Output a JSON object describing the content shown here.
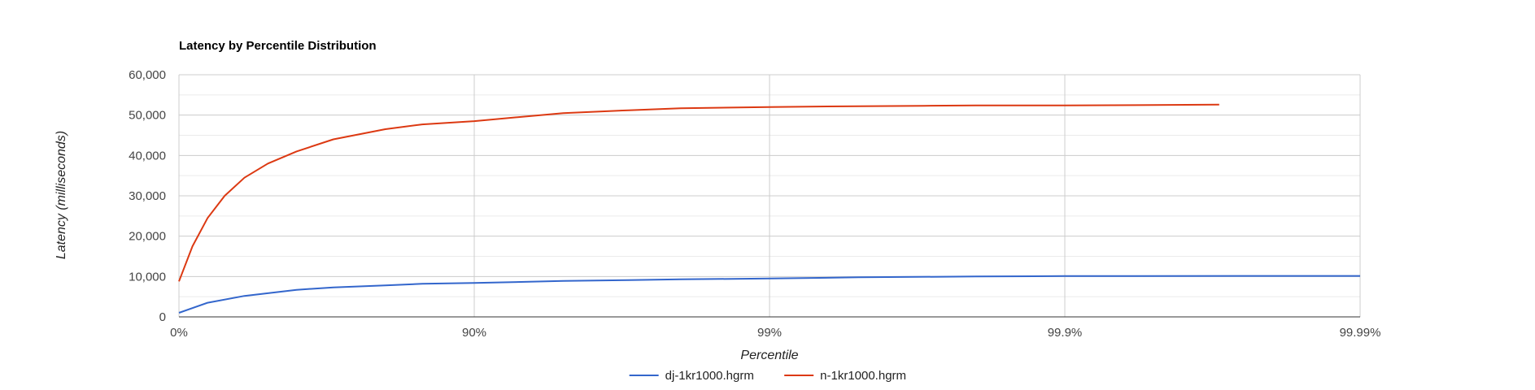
{
  "chart_data": {
    "type": "line",
    "title": "Latency by Percentile Distribution",
    "xlabel": "Percentile",
    "ylabel": "Latency (milliseconds)",
    "x_scale": "log-inverse-percentile",
    "x_ticks": [
      "0%",
      "90%",
      "99%",
      "99.9%",
      "99.99%"
    ],
    "y_ticks": [
      "0",
      "10,000",
      "20,000",
      "30,000",
      "40,000",
      "50,000",
      "60,000"
    ],
    "ylim": [
      0,
      60000
    ],
    "grid": true,
    "legend_position": "bottom",
    "series": [
      {
        "name": "dj-1kr1000.hgrm",
        "color": "#3366cc",
        "x": [
          "0%",
          "20%",
          "40%",
          "60%",
          "70%",
          "80%",
          "85%",
          "90%",
          "95%",
          "97%",
          "98%",
          "99%",
          "99.5%",
          "99.8%",
          "99.9%",
          "99.99%"
        ],
        "values": [
          1000,
          3500,
          5200,
          6700,
          7300,
          7800,
          8200,
          8400,
          8900,
          9100,
          9300,
          9500,
          9800,
          10000,
          10100,
          10150
        ]
      },
      {
        "name": "n-1kr1000.hgrm",
        "color": "#dc3912",
        "x": [
          "0%",
          "10%",
          "20%",
          "30%",
          "40%",
          "50%",
          "60%",
          "70%",
          "80%",
          "85%",
          "90%",
          "95%",
          "97%",
          "98%",
          "99%",
          "99.5%",
          "99.7%",
          "99.8%",
          "99.9%",
          "99.95%",
          "99.97%"
        ],
        "values": [
          8800,
          17500,
          24500,
          30000,
          34500,
          38000,
          41000,
          44000,
          46500,
          47700,
          48500,
          50500,
          51200,
          51700,
          52000,
          52200,
          52300,
          52400,
          52400,
          52500,
          52600
        ]
      }
    ]
  }
}
